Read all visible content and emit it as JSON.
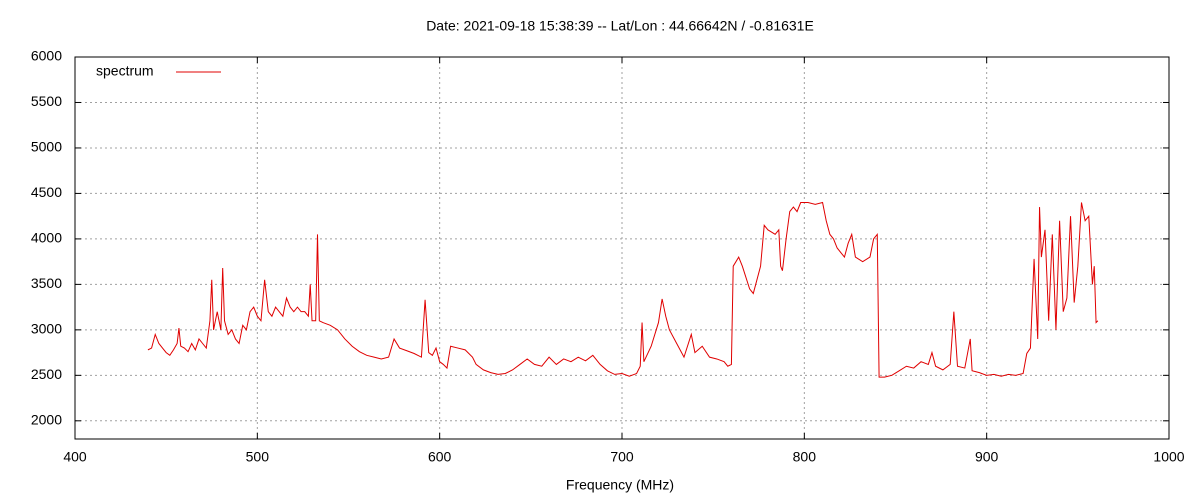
{
  "chart_data": {
    "type": "line",
    "title": "Date: 2021-09-18 15:38:39  --  Lat/Lon : 44.66642N / -0.81631E",
    "x_label": "Frequency (MHz)",
    "x": [
      440,
      442,
      444,
      446,
      448,
      450,
      452,
      454,
      456,
      457,
      458,
      460,
      462,
      464,
      466,
      468,
      470,
      472,
      474,
      475,
      476,
      478,
      480,
      481,
      482,
      484,
      486,
      488,
      490,
      492,
      494,
      496,
      498,
      500,
      502,
      504,
      506,
      508,
      510,
      512,
      514,
      516,
      518,
      520,
      522,
      524,
      526,
      528,
      529,
      530,
      532,
      533,
      534,
      536,
      540,
      544,
      548,
      552,
      556,
      560,
      564,
      568,
      572,
      575,
      578,
      582,
      586,
      590,
      592,
      594,
      596,
      598,
      600,
      602,
      604,
      606,
      610,
      614,
      618,
      620,
      624,
      628,
      632,
      636,
      640,
      644,
      648,
      652,
      656,
      660,
      664,
      668,
      672,
      676,
      680,
      684,
      688,
      692,
      696,
      700,
      704,
      708,
      710,
      711,
      712,
      716,
      720,
      722,
      724,
      726,
      730,
      734,
      738,
      740,
      744,
      748,
      752,
      756,
      758,
      760,
      761,
      764,
      766,
      770,
      772,
      776,
      778,
      780,
      784,
      786,
      787,
      788,
      790,
      792,
      794,
      796,
      798,
      802,
      806,
      810,
      812,
      814,
      816,
      818,
      820,
      822,
      824,
      826,
      828,
      832,
      836,
      838,
      840,
      841,
      844,
      848,
      852,
      856,
      860,
      864,
      868,
      870,
      872,
      876,
      880,
      882,
      884,
      888,
      891,
      892,
      896,
      900,
      904,
      908,
      912,
      916,
      920,
      922,
      924,
      926,
      928,
      929,
      930,
      932,
      934,
      936,
      938,
      940,
      942,
      944,
      946,
      948,
      950,
      952,
      954,
      956,
      958,
      959,
      960,
      961
    ],
    "series": [
      {
        "name": "spectrum",
        "color": "#e00000",
        "values": [
          2780,
          2800,
          2950,
          2850,
          2800,
          2750,
          2720,
          2780,
          2850,
          3020,
          2820,
          2800,
          2760,
          2850,
          2780,
          2900,
          2850,
          2800,
          3100,
          3550,
          3000,
          3200,
          3000,
          3680,
          3100,
          2950,
          3000,
          2900,
          2850,
          3050,
          3000,
          3200,
          3250,
          3150,
          3100,
          3550,
          3200,
          3150,
          3250,
          3200,
          3150,
          3350,
          3250,
          3200,
          3250,
          3200,
          3200,
          3150,
          3500,
          3100,
          3100,
          4050,
          3100,
          3080,
          3050,
          3000,
          2900,
          2820,
          2760,
          2720,
          2700,
          2680,
          2700,
          2900,
          2800,
          2770,
          2740,
          2700,
          3330,
          2750,
          2720,
          2800,
          2650,
          2620,
          2580,
          2820,
          2800,
          2780,
          2700,
          2620,
          2560,
          2530,
          2510,
          2520,
          2560,
          2620,
          2680,
          2620,
          2600,
          2700,
          2620,
          2680,
          2650,
          2700,
          2660,
          2720,
          2620,
          2550,
          2510,
          2520,
          2490,
          2520,
          2600,
          3080,
          2650,
          2820,
          3080,
          3340,
          3150,
          3000,
          2850,
          2700,
          2950,
          2750,
          2820,
          2700,
          2680,
          2650,
          2600,
          2620,
          3700,
          3800,
          3700,
          3450,
          3400,
          3700,
          4150,
          4100,
          4050,
          4100,
          3700,
          3650,
          4000,
          4300,
          4350,
          4300,
          4400,
          4400,
          4380,
          4400,
          4200,
          4050,
          4000,
          3900,
          3850,
          3800,
          3950,
          4050,
          3800,
          3750,
          3800,
          4000,
          4050,
          2480,
          2480,
          2500,
          2550,
          2600,
          2580,
          2650,
          2620,
          2750,
          2600,
          2560,
          2620,
          3200,
          2600,
          2580,
          2900,
          2550,
          2530,
          2500,
          2510,
          2490,
          2510,
          2500,
          2520,
          2740,
          2800,
          3780,
          2900,
          4350,
          3800,
          4100,
          3100,
          4050,
          3000,
          4200,
          3200,
          3350,
          4250,
          3300,
          3700,
          4400,
          4200,
          4250,
          3500,
          3700,
          3080,
          3100
        ]
      }
    ],
    "xlim": [
      400,
      1000
    ],
    "xticks": [
      400,
      500,
      600,
      700,
      800,
      900,
      1000
    ],
    "ylim": [
      1800,
      6000
    ],
    "yticks": [
      2000,
      2500,
      3000,
      3500,
      4000,
      4500,
      5000,
      5500,
      6000
    ],
    "grid": true,
    "legend": "top-left"
  }
}
